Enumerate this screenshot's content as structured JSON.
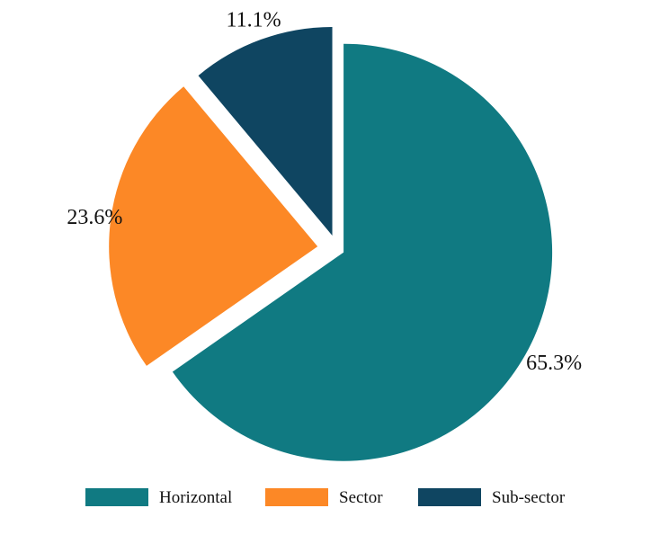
{
  "chart_data": {
    "type": "pie",
    "title": "",
    "categories": [
      "Horizontal",
      "Sector",
      "Sub-sector"
    ],
    "values": [
      65.3,
      23.6,
      11.1
    ],
    "labels": [
      "65.3%",
      "23.6%",
      "11.1%"
    ],
    "colors": [
      "#107A82",
      "#FC8826",
      "#0F4561"
    ],
    "start_angle_deg": 0,
    "direction": "clockwise",
    "exploded": true,
    "legend": {
      "position": "bottom",
      "entries": [
        "Horizontal",
        "Sector",
        "Sub-sector"
      ]
    }
  }
}
